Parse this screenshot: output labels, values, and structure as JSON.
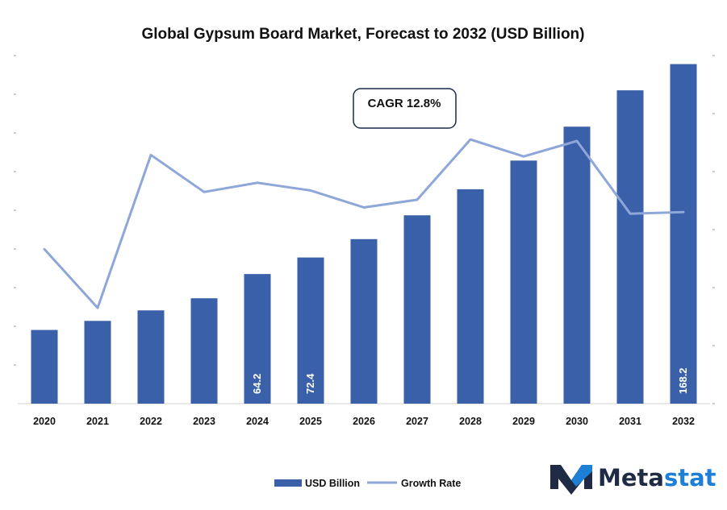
{
  "chart_data": {
    "type": "bar",
    "title": "Global Gypsum Board Market, Forecast to 2032 (USD Billion)",
    "categories": [
      "2020",
      "2021",
      "2022",
      "2023",
      "2024",
      "2025",
      "2026",
      "2027",
      "2028",
      "2029",
      "2030",
      "2031",
      "2032"
    ],
    "series": [
      {
        "name": "USD Billion",
        "type": "bar",
        "color": "#3a60aa",
        "values": [
          36.5,
          41.0,
          46.2,
          52.2,
          64.2,
          72.4,
          81.5,
          93.3,
          106.2,
          120.4,
          137.2,
          155.2,
          168.2
        ]
      },
      {
        "name": "Growth Rate",
        "type": "line",
        "color": "#8fa6d9",
        "values": [
          10.0,
          6.2,
          16.1,
          13.7,
          14.3,
          13.8,
          12.7,
          13.2,
          17.1,
          16.0,
          17.0,
          12.3,
          12.4
        ]
      }
    ],
    "data_labels": {
      "4": "64.2",
      "5": "72.4",
      "12": "168.2"
    },
    "annotation": "CAGR 12.8%",
    "ylim": [
      0,
      176
    ],
    "y2lim": [
      0,
      23
    ],
    "grid": false,
    "legend_position": "bottom"
  },
  "brand": {
    "name": "Metastat",
    "colors": {
      "dark": "#1f2a44",
      "blue": "#1e7fd6"
    }
  }
}
